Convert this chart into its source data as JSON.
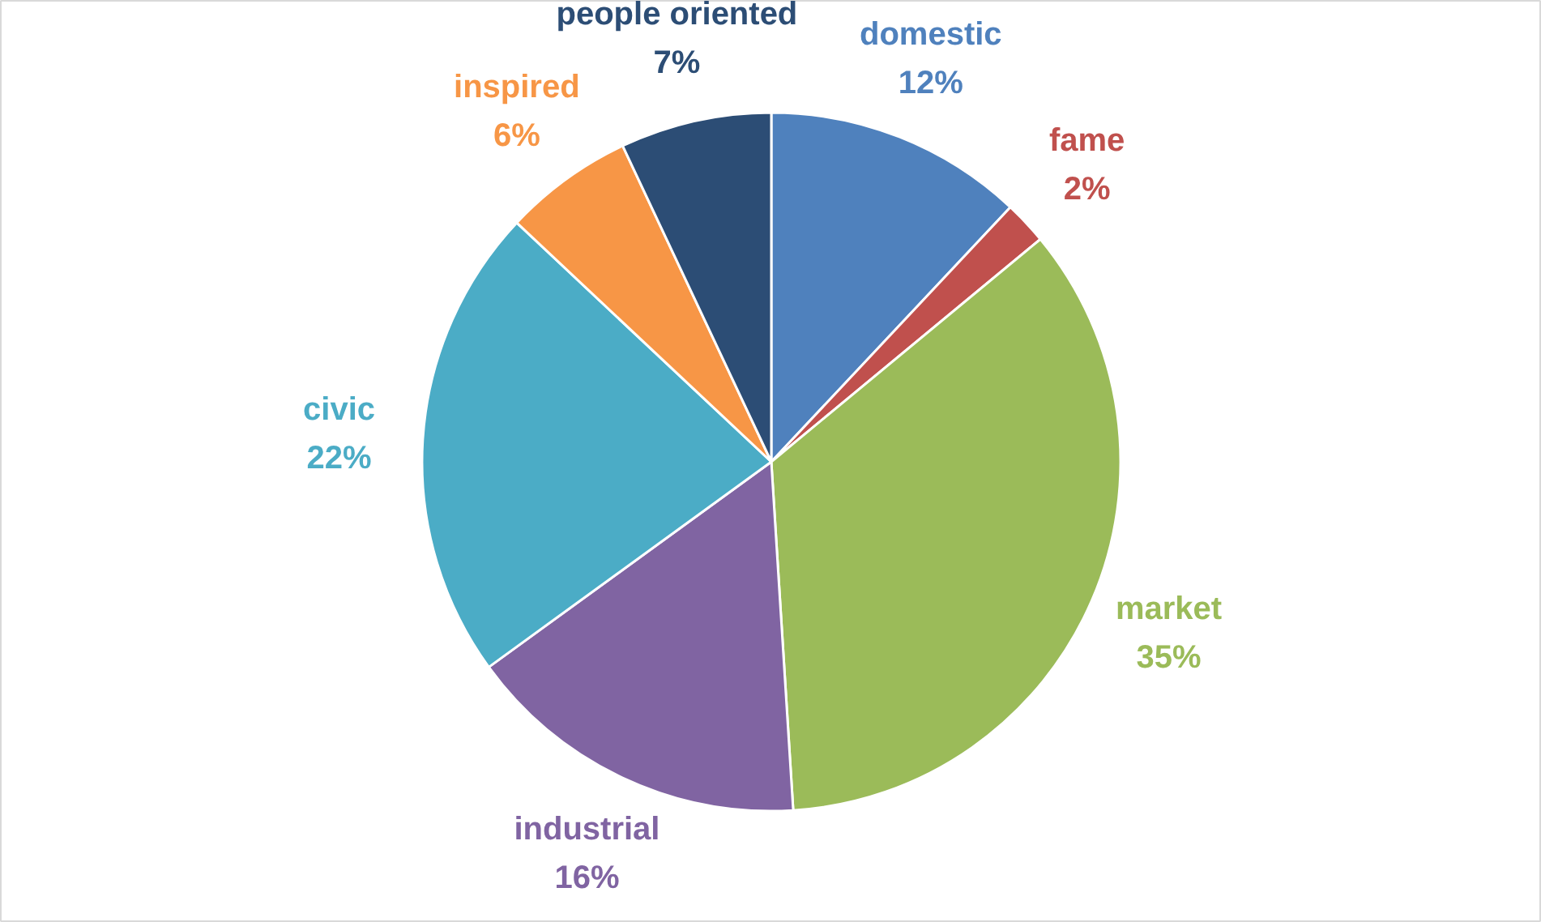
{
  "chart_data": {
    "type": "pie",
    "categories": [
      "domestic",
      "fame",
      "market",
      "industrial",
      "civic",
      "inspired",
      "people oriented"
    ],
    "values": [
      12,
      2,
      35,
      16,
      22,
      6,
      7
    ],
    "value_labels": [
      "12%",
      "2%",
      "35%",
      "16%",
      "22%",
      "6%",
      "7%"
    ],
    "colors": [
      "#4f81bd",
      "#c0504d",
      "#9bbb59",
      "#8064a2",
      "#4bacc6",
      "#f79646",
      "#2c4d75"
    ]
  }
}
